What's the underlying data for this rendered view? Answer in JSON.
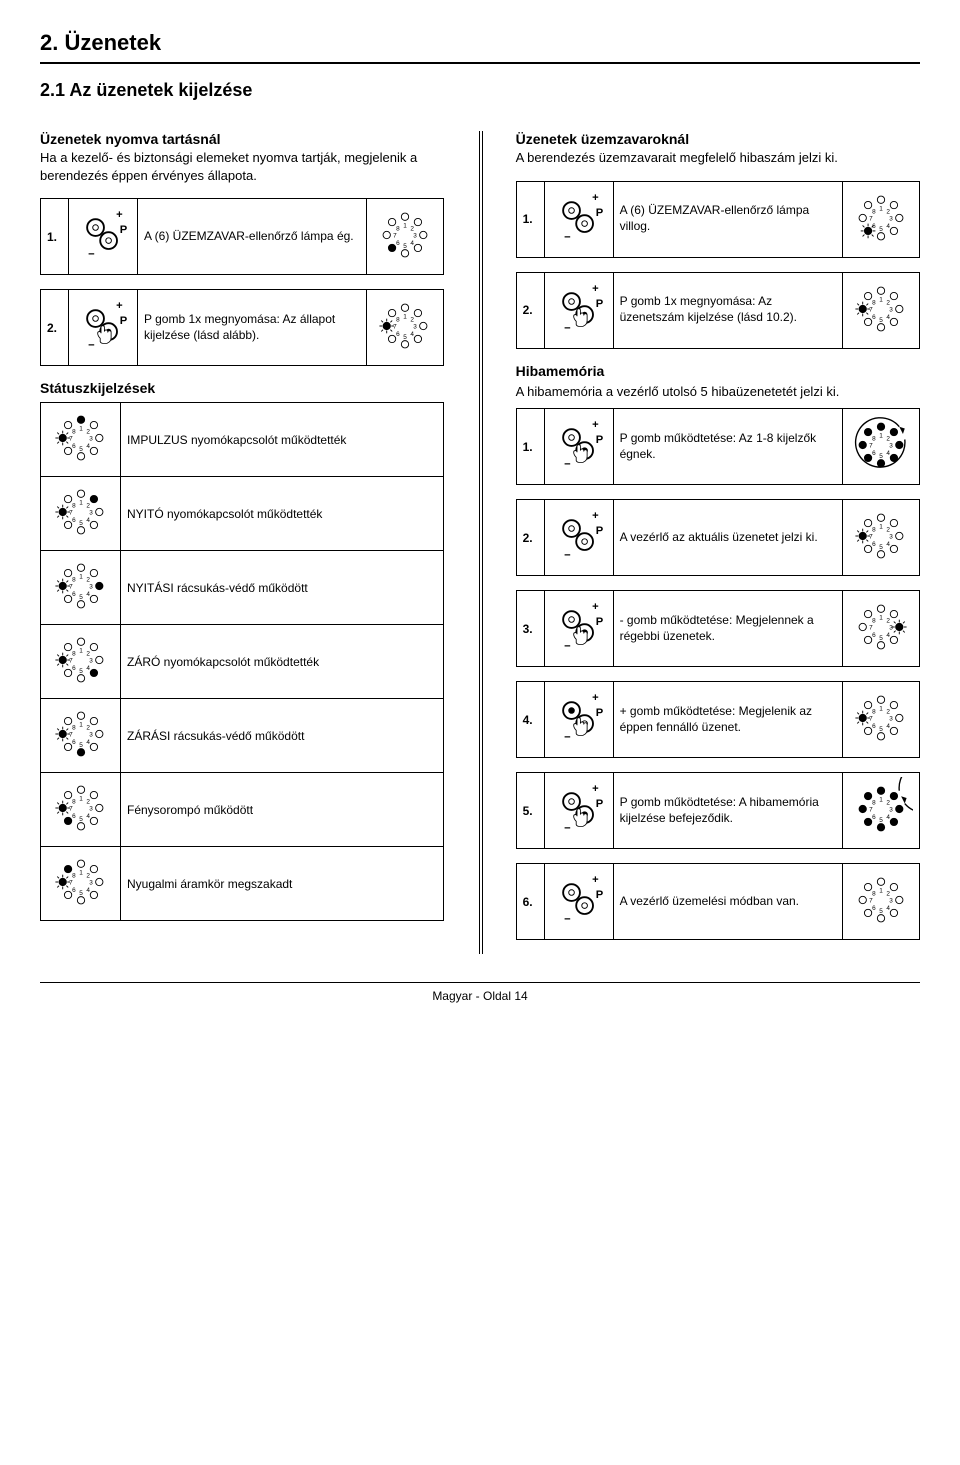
{
  "h1": "2.   Üzenetek",
  "h2": "2.1  Az üzenetek kijelzése",
  "left": {
    "intro_title": "Üzenetek nyomva tartásnál",
    "intro_body": "Ha a kezelő- és biztonsági elemeket nyomva tartják, megjelenik a berendezés éppen érvényes állapota.",
    "step1_num": "1.",
    "step1_text": "A (6) ÜZEMZAVAR-ellenőrző lámpa ég.",
    "step2_num": "2.",
    "step2_text": "P gomb 1x megnyomása: Az állapot kijelzése (lásd alább).",
    "status_title": "Státuszkijelzések",
    "status": [
      "IMPULZUS nyomókapcsolót működtették",
      "NYITÓ nyomókapcsolót működtették",
      "NYITÁSI rácsukás-védő működött",
      "ZÁRÓ nyomókapcsolót működtették",
      "ZÁRÁSI rácsukás-védő működött",
      "Fénysorompó működött",
      "Nyugalmi áramkör megszakadt"
    ]
  },
  "right": {
    "intro_title": "Üzenetek üzemzavaroknál",
    "intro_body": "A berendezés üzemzavarait megfelelő hibaszám jelzi ki.",
    "step1_num": "1.",
    "step1_text": "A (6) ÜZEMZAVAR-ellenőrző lámpa villog.",
    "step2_num": "2.",
    "step2_text": "P gomb 1x megnyomása: Az üzenetszám kijelzése (lásd 10.2).",
    "mem_title": "Hibamemória",
    "mem_body": "A hibamemória a vezérlő utolsó 5 hibaüzenetetét jelzi ki.",
    "steps": [
      {
        "n": "1.",
        "text": "P gomb működtetése: Az 1-8 kijelzők égnek."
      },
      {
        "n": "2.",
        "text": "A vezérlő az aktuális üzenetet jelzi ki."
      },
      {
        "n": "3.",
        "text": "- gomb működtetése: Megjelennek a régebbi üzenetek."
      },
      {
        "n": "4.",
        "text": "+ gomb működtetése: Megjelenik az éppen fennálló üzenet."
      },
      {
        "n": "5.",
        "text": "P gomb működtetése: A hibamemória kijelzése befejeződik."
      },
      {
        "n": "6.",
        "text": "A vezérlő üzemelési módban van."
      }
    ]
  },
  "led_labels": [
    "1",
    "2",
    "3",
    "4",
    "5",
    "6",
    "7",
    "8"
  ],
  "plus": "+",
  "minus": "−",
  "p": "P",
  "footer": "Magyar - Oldal 14",
  "colors": {
    "ink": "#000000",
    "paper": "#ffffff"
  }
}
